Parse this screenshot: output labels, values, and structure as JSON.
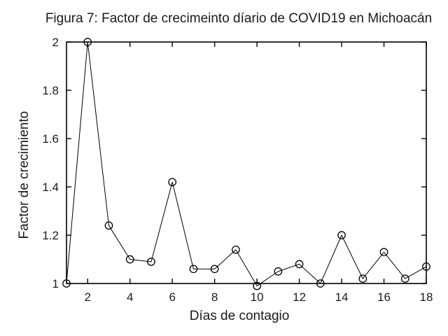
{
  "figure": {
    "background_color": "#ffffff",
    "line_color": "#000000",
    "marker_style": "open-circle"
  },
  "chart_data": {
    "type": "line",
    "title": "Figura 7: Factor de crecimeinto díario de COVID19 en Michoacán",
    "xlabel": "Días de contagio",
    "ylabel": "Factor de crecimiento",
    "x": [
      1,
      2,
      3,
      4,
      5,
      6,
      7,
      8,
      9,
      10,
      11,
      12,
      13,
      14,
      15,
      16,
      17,
      18
    ],
    "y": [
      1.0,
      2.0,
      1.24,
      1.1,
      1.09,
      1.42,
      1.06,
      1.06,
      1.14,
      0.99,
      1.05,
      1.08,
      1.0,
      1.2,
      1.02,
      1.13,
      1.02,
      1.07
    ],
    "xlim": [
      1,
      18
    ],
    "ylim": [
      1,
      2
    ],
    "xticks": [
      2,
      4,
      6,
      8,
      10,
      12,
      14,
      16,
      18
    ],
    "xtick_labels": [
      "2",
      "4",
      "6",
      "8",
      "10",
      "12",
      "14",
      "16",
      "18"
    ],
    "yticks": [
      1,
      1.2,
      1.4,
      1.6,
      1.8,
      2
    ],
    "ytick_labels": [
      "1",
      "1.2",
      "1.4",
      "1.6",
      "1.8",
      "2"
    ],
    "grid": false,
    "legend": "none",
    "line_color": "#000000",
    "marker": "open-circle",
    "marker_fill": "none",
    "marker_edge_color": "#000000"
  }
}
